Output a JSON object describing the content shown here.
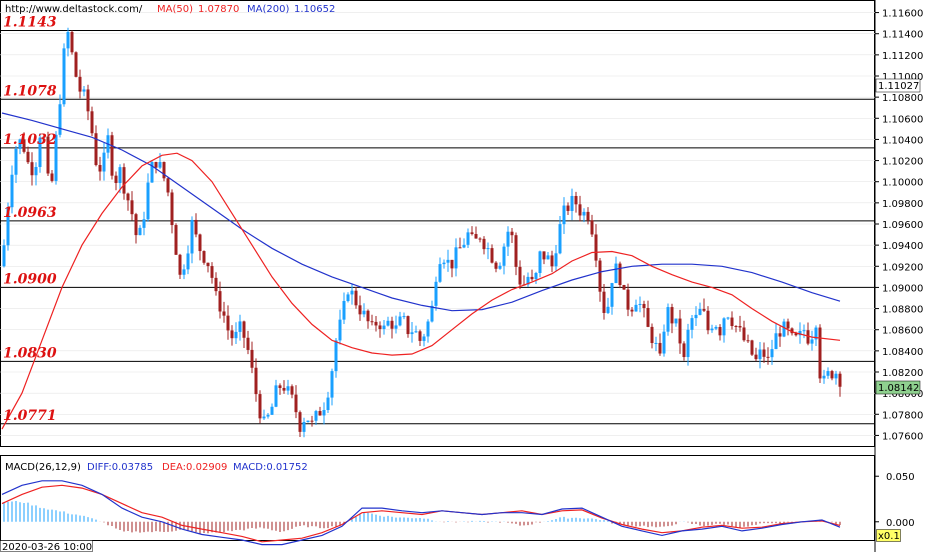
{
  "header": {
    "url": "http://www.deltastock.com/",
    "ma50_label": "MA(50)",
    "ma50_value": "1.07870",
    "ma200_label": "MA(200)",
    "ma200_value": "1.10652"
  },
  "macd_header": {
    "label": "MACD(26,12,9)",
    "diff": "DIFF:0.03785",
    "dea": "DEA:0.02909",
    "macd": "MACD:0.01752"
  },
  "bottom": {
    "date": "2020-03-26 10:00",
    "scale": "x0.1"
  },
  "colors": {
    "up": "#1aa0ff",
    "down": "#a02020",
    "ma50": "#ee2222",
    "ma200": "#2233cc",
    "level": "#dd1111",
    "current_box": "#8fd18f"
  },
  "chart_data": [
    {
      "type": "candlestick",
      "ylim": [
        1.075,
        1.117
      ],
      "y_ticks": [
        "1.11600",
        "1.11400",
        "1.11200",
        "1.11000",
        "1.10800",
        "1.10600",
        "1.10400",
        "1.10200",
        "1.10000",
        "1.09800",
        "1.09600",
        "1.09400",
        "1.09200",
        "1.09000",
        "1.08800",
        "1.08600",
        "1.08400",
        "1.08200",
        "1.08000",
        "1.07800",
        "1.07600"
      ],
      "levels": [
        {
          "value": 1.1143,
          "label": "1.1143"
        },
        {
          "value": 1.1078,
          "label": "1.1078"
        },
        {
          "value": 1.1032,
          "label": "1.1032"
        },
        {
          "value": 1.0963,
          "label": "1.0963"
        },
        {
          "value": 1.09,
          "label": "1.0900"
        },
        {
          "value": 1.083,
          "label": "1.0830"
        },
        {
          "value": 1.0771,
          "label": "1.0771"
        }
      ],
      "current_price": {
        "value": 1.08142,
        "label": "1.08142"
      },
      "upper_price": {
        "value": 1.11027,
        "label": "1.11027"
      },
      "close_path": [
        [
          0,
          1.092
        ],
        [
          6,
          1.098
        ],
        [
          12,
          1.103
        ],
        [
          20,
          1.104
        ],
        [
          28,
          1.101
        ],
        [
          34,
          1.102
        ],
        [
          40,
          1.106
        ],
        [
          48,
          1.098
        ],
        [
          55,
          1.105
        ],
        [
          62,
          1.112
        ],
        [
          66,
          1.114
        ],
        [
          70,
          1.112
        ],
        [
          76,
          1.109
        ],
        [
          82,
          1.108
        ],
        [
          88,
          1.106
        ],
        [
          94,
          1.102
        ],
        [
          100,
          1.101
        ],
        [
          106,
          1.104
        ],
        [
          112,
          1.1
        ],
        [
          118,
          1.101
        ],
        [
          124,
          1.099
        ],
        [
          130,
          1.097
        ],
        [
          136,
          1.094
        ],
        [
          142,
          1.097
        ],
        [
          148,
          1.101
        ],
        [
          154,
          1.102
        ],
        [
          160,
          1.101
        ],
        [
          166,
          1.099
        ],
        [
          172,
          1.095
        ],
        [
          178,
          1.091
        ],
        [
          184,
          1.093
        ],
        [
          190,
          1.096
        ],
        [
          196,
          1.094
        ],
        [
          202,
          1.093
        ],
        [
          208,
          1.092
        ],
        [
          214,
          1.089
        ],
        [
          220,
          1.088
        ],
        [
          226,
          1.086
        ],
        [
          232,
          1.085
        ],
        [
          238,
          1.086
        ],
        [
          244,
          1.085
        ],
        [
          250,
          1.082
        ],
        [
          256,
          1.079
        ],
        [
          262,
          1.077
        ],
        [
          268,
          1.078
        ],
        [
          274,
          1.08
        ],
        [
          280,
          1.081
        ],
        [
          286,
          1.08
        ],
        [
          292,
          1.079
        ],
        [
          298,
          1.077
        ],
        [
          304,
          1.078
        ],
        [
          310,
          1.077
        ],
        [
          316,
          1.078
        ],
        [
          322,
          1.079
        ],
        [
          328,
          1.081
        ],
        [
          334,
          1.085
        ],
        [
          340,
          1.087
        ],
        [
          346,
          1.09
        ],
        [
          352,
          1.089
        ],
        [
          358,
          1.088
        ],
        [
          364,
          1.087
        ],
        [
          370,
          1.086
        ],
        [
          376,
          1.087
        ],
        [
          382,
          1.086
        ],
        [
          388,
          1.087
        ],
        [
          394,
          1.086
        ],
        [
          400,
          1.087
        ],
        [
          406,
          1.086
        ],
        [
          412,
          1.086
        ],
        [
          418,
          1.085
        ],
        [
          424,
          1.086
        ],
        [
          430,
          1.088
        ],
        [
          436,
          1.093
        ],
        [
          442,
          1.093
        ],
        [
          448,
          1.092
        ],
        [
          454,
          1.093
        ],
        [
          460,
          1.094
        ],
        [
          466,
          1.095
        ],
        [
          472,
          1.094
        ],
        [
          478,
          1.095
        ],
        [
          484,
          1.094
        ],
        [
          490,
          1.093
        ],
        [
          496,
          1.092
        ],
        [
          502,
          1.094
        ],
        [
          508,
          1.096
        ],
        [
          514,
          1.092
        ],
        [
          520,
          1.09
        ],
        [
          526,
          1.091
        ],
        [
          532,
          1.09
        ],
        [
          538,
          1.093
        ],
        [
          544,
          1.093
        ],
        [
          550,
          1.092
        ],
        [
          556,
          1.095
        ],
        [
          562,
          1.097
        ],
        [
          568,
          1.098
        ],
        [
          574,
          1.098
        ],
        [
          580,
          1.097
        ],
        [
          586,
          1.097
        ],
        [
          592,
          1.095
        ],
        [
          598,
          1.09
        ],
        [
          604,
          1.087
        ],
        [
          610,
          1.091
        ],
        [
          616,
          1.092
        ],
        [
          622,
          1.089
        ],
        [
          628,
          1.088
        ],
        [
          634,
          1.089
        ],
        [
          640,
          1.088
        ],
        [
          646,
          1.086
        ],
        [
          652,
          1.085
        ],
        [
          658,
          1.083
        ],
        [
          664,
          1.088
        ],
        [
          670,
          1.087
        ],
        [
          676,
          1.086
        ],
        [
          682,
          1.083
        ],
        [
          688,
          1.087
        ],
        [
          694,
          1.087
        ],
        [
          700,
          1.088
        ],
        [
          706,
          1.086
        ],
        [
          712,
          1.087
        ],
        [
          718,
          1.086
        ],
        [
          724,
          1.088
        ],
        [
          730,
          1.087
        ],
        [
          736,
          1.086
        ],
        [
          742,
          1.085
        ],
        [
          748,
          1.084
        ],
        [
          754,
          1.083
        ],
        [
          760,
          1.084
        ],
        [
          766,
          1.083
        ],
        [
          772,
          1.085
        ],
        [
          778,
          1.086
        ],
        [
          784,
          1.086
        ],
        [
          790,
          1.085
        ],
        [
          796,
          1.085
        ],
        [
          802,
          1.086
        ],
        [
          808,
          1.085
        ],
        [
          814,
          1.087
        ],
        [
          818,
          1.082
        ],
        [
          822,
          1.081
        ],
        [
          828,
          1.082
        ],
        [
          834,
          1.082
        ],
        [
          838,
          1.0814
        ]
      ],
      "ma50_path": [
        [
          0,
          1.0766
        ],
        [
          20,
          1.08
        ],
        [
          40,
          1.085
        ],
        [
          60,
          1.09
        ],
        [
          80,
          1.094
        ],
        [
          100,
          1.097
        ],
        [
          120,
          1.0995
        ],
        [
          140,
          1.1015
        ],
        [
          160,
          1.1025
        ],
        [
          175,
          1.1027
        ],
        [
          190,
          1.102
        ],
        [
          210,
          1.1
        ],
        [
          230,
          1.097
        ],
        [
          250,
          1.094
        ],
        [
          270,
          1.091
        ],
        [
          290,
          1.0885
        ],
        [
          310,
          1.0865
        ],
        [
          330,
          1.085
        ],
        [
          350,
          1.0843
        ],
        [
          370,
          1.0838
        ],
        [
          390,
          1.0836
        ],
        [
          410,
          1.0837
        ],
        [
          430,
          1.0845
        ],
        [
          450,
          1.086
        ],
        [
          470,
          1.0875
        ],
        [
          490,
          1.0888
        ],
        [
          510,
          1.0898
        ],
        [
          530,
          1.0905
        ],
        [
          550,
          1.0913
        ],
        [
          570,
          1.0925
        ],
        [
          590,
          1.0933
        ],
        [
          610,
          1.0934
        ],
        [
          630,
          1.093
        ],
        [
          650,
          1.092
        ],
        [
          670,
          1.0912
        ],
        [
          690,
          1.0905
        ],
        [
          710,
          1.09
        ],
        [
          730,
          1.0893
        ],
        [
          750,
          1.088
        ],
        [
          770,
          1.0868
        ],
        [
          790,
          1.0858
        ],
        [
          810,
          1.0853
        ],
        [
          838,
          1.085
        ]
      ],
      "ma200_path": [
        [
          0,
          1.1065
        ],
        [
          30,
          1.1058
        ],
        [
          60,
          1.105
        ],
        [
          90,
          1.1042
        ],
        [
          120,
          1.103
        ],
        [
          150,
          1.1015
        ],
        [
          180,
          1.0995
        ],
        [
          210,
          1.0975
        ],
        [
          240,
          1.0955
        ],
        [
          270,
          1.0937
        ],
        [
          300,
          1.0922
        ],
        [
          330,
          1.091
        ],
        [
          360,
          1.09
        ],
        [
          390,
          1.089
        ],
        [
          420,
          1.0883
        ],
        [
          450,
          1.0878
        ],
        [
          480,
          1.0879
        ],
        [
          510,
          1.0886
        ],
        [
          540,
          1.0897
        ],
        [
          570,
          1.0907
        ],
        [
          600,
          1.0915
        ],
        [
          630,
          1.092
        ],
        [
          660,
          1.0922
        ],
        [
          690,
          1.0922
        ],
        [
          720,
          1.092
        ],
        [
          750,
          1.0914
        ],
        [
          780,
          1.0905
        ],
        [
          810,
          1.0895
        ],
        [
          838,
          1.0887
        ]
      ]
    },
    {
      "type": "macd",
      "ylim": [
        -0.02,
        0.07
      ],
      "y_ticks": [
        "0.050",
        "0.000"
      ],
      "diff_path": [
        [
          0,
          0.03
        ],
        [
          20,
          0.04
        ],
        [
          40,
          0.045
        ],
        [
          60,
          0.045
        ],
        [
          80,
          0.04
        ],
        [
          100,
          0.03
        ],
        [
          120,
          0.015
        ],
        [
          140,
          0.005
        ],
        [
          160,
          0.0
        ],
        [
          180,
          -0.008
        ],
        [
          200,
          -0.014
        ],
        [
          220,
          -0.017
        ],
        [
          240,
          -0.02
        ],
        [
          260,
          -0.025
        ],
        [
          280,
          -0.025
        ],
        [
          300,
          -0.02
        ],
        [
          320,
          -0.015
        ],
        [
          340,
          -0.005
        ],
        [
          360,
          0.015
        ],
        [
          380,
          0.015
        ],
        [
          400,
          0.012
        ],
        [
          420,
          0.01
        ],
        [
          440,
          0.012
        ],
        [
          460,
          0.01
        ],
        [
          480,
          0.008
        ],
        [
          500,
          0.01
        ],
        [
          520,
          0.01
        ],
        [
          540,
          0.008
        ],
        [
          560,
          0.014
        ],
        [
          580,
          0.015
        ],
        [
          600,
          0.005
        ],
        [
          620,
          -0.005
        ],
        [
          640,
          -0.01
        ],
        [
          660,
          -0.015
        ],
        [
          680,
          -0.01
        ],
        [
          700,
          -0.008
        ],
        [
          720,
          -0.005
        ],
        [
          740,
          -0.01
        ],
        [
          760,
          -0.007
        ],
        [
          780,
          -0.003
        ],
        [
          800,
          0.0
        ],
        [
          820,
          0.002
        ],
        [
          838,
          -0.006
        ]
      ],
      "dea_path": [
        [
          0,
          0.02
        ],
        [
          20,
          0.03
        ],
        [
          40,
          0.038
        ],
        [
          60,
          0.04
        ],
        [
          80,
          0.037
        ],
        [
          100,
          0.03
        ],
        [
          120,
          0.02
        ],
        [
          140,
          0.01
        ],
        [
          160,
          0.005
        ],
        [
          180,
          -0.004
        ],
        [
          200,
          -0.008
        ],
        [
          220,
          -0.012
        ],
        [
          240,
          -0.016
        ],
        [
          260,
          -0.022
        ],
        [
          280,
          -0.02
        ],
        [
          300,
          -0.018
        ],
        [
          320,
          -0.012
        ],
        [
          340,
          -0.003
        ],
        [
          360,
          0.01
        ],
        [
          380,
          0.012
        ],
        [
          400,
          0.01
        ],
        [
          420,
          0.008
        ],
        [
          440,
          0.012
        ],
        [
          460,
          0.01
        ],
        [
          480,
          0.008
        ],
        [
          500,
          0.01
        ],
        [
          520,
          0.012
        ],
        [
          540,
          0.008
        ],
        [
          560,
          0.012
        ],
        [
          580,
          0.013
        ],
        [
          600,
          0.004
        ],
        [
          620,
          -0.003
        ],
        [
          640,
          -0.008
        ],
        [
          660,
          -0.012
        ],
        [
          680,
          -0.01
        ],
        [
          700,
          -0.006
        ],
        [
          720,
          -0.004
        ],
        [
          740,
          -0.007
        ],
        [
          760,
          -0.006
        ],
        [
          780,
          -0.002
        ],
        [
          800,
          0.0
        ],
        [
          820,
          0.001
        ],
        [
          838,
          -0.004
        ]
      ]
    }
  ]
}
